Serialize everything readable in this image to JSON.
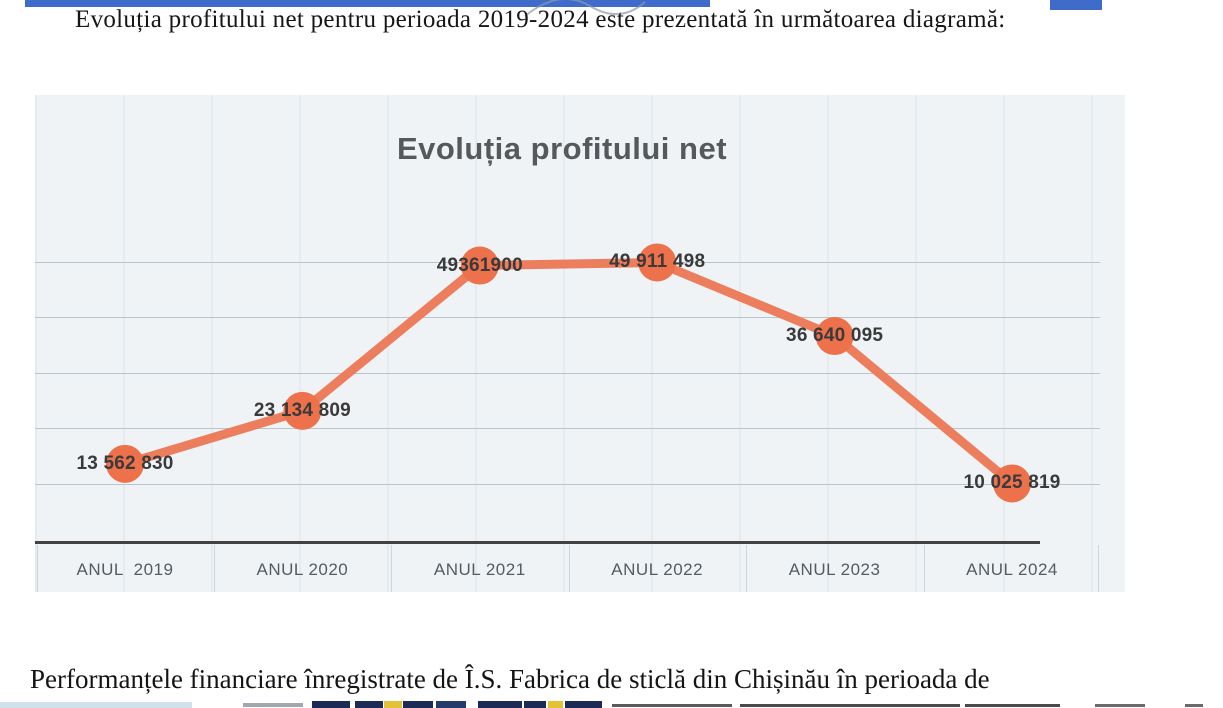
{
  "page": {
    "heading": "Evoluția profitului net pentru perioada 2019-2024 este prezentată în următoarea diagramă:",
    "footer_paragraph": "Performanțele financiare înregistrate de Î.S. Fabrica de sticlă din Chișinău în perioada de"
  },
  "chart_data": {
    "type": "line",
    "title": "Evoluția profitului net",
    "categories": [
      "ANUL  2019",
      "ANUL 2020",
      "ANUL 2021",
      "ANUL 2022",
      "ANUL 2023",
      "ANUL 2024"
    ],
    "values": [
      13562830,
      23134809,
      49361900,
      49911498,
      36640095,
      10025819
    ],
    "data_labels": [
      "13 562 830",
      "23 134 809",
      "49361900",
      "49 911 498",
      "36 640 095",
      "10 025 819"
    ],
    "xlabel": "",
    "ylabel": "",
    "ylim": [
      0,
      55000000
    ],
    "grid": "horizontal, every 10000000",
    "legend": "none",
    "label_position": "center",
    "series_color": "#ec7e5d",
    "marker_color": "#ed714b"
  },
  "colors": {
    "chart_background": "#eff3f6",
    "gridline": "#b9c4cc",
    "axis_line": "#424242",
    "title_text": "#56595c",
    "top_highlight_blue": "#3f6ccb",
    "bottom_highlight_navy": "#1b2b55",
    "bottom_highlight_yellow": "#e3c235",
    "bottom_strip_pale_blue": "#cfe2ec"
  }
}
